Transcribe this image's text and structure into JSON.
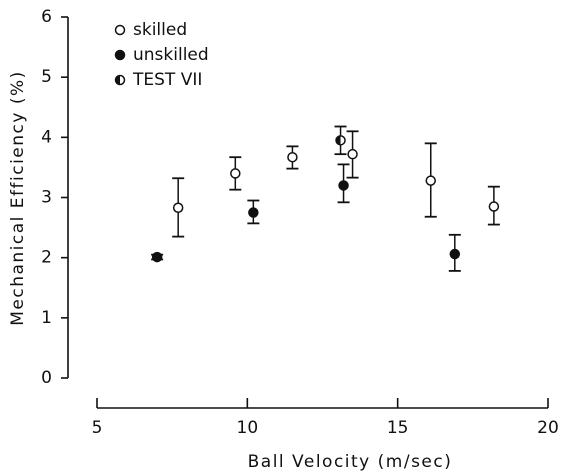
{
  "chart_data": {
    "type": "errorbar-scatter",
    "xlabel": "Ball Velocity (m/sec)",
    "ylabel": "Mechanical Efficiency (%)",
    "xlim": [
      5,
      20
    ],
    "xticks": [
      5,
      10,
      15,
      20
    ],
    "ylim": [
      0,
      6
    ],
    "yticks": [
      0,
      1,
      2,
      3,
      4,
      5,
      6
    ],
    "grid": false,
    "legend": "upper left",
    "series": [
      {
        "name": "skilled",
        "marker": "open",
        "color": "#111111",
        "x": [
          7.7,
          9.6,
          11.5,
          13.5,
          16.1,
          18.2
        ],
        "values": [
          2.83,
          3.4,
          3.67,
          3.72,
          3.28,
          2.85
        ],
        "low": [
          2.35,
          3.13,
          3.48,
          3.33,
          2.68,
          2.55
        ],
        "high": [
          3.32,
          3.67,
          3.85,
          4.1,
          3.9,
          3.18
        ]
      },
      {
        "name": "unskilled",
        "marker": "filled",
        "color": "#111111",
        "x": [
          7.0,
          10.2,
          13.2,
          16.9
        ],
        "values": [
          2.01,
          2.75,
          3.2,
          2.06
        ],
        "low": [
          1.97,
          2.57,
          2.92,
          1.78
        ],
        "high": [
          2.05,
          2.95,
          3.55,
          2.38
        ]
      },
      {
        "name": "TEST VII",
        "marker": "half",
        "color": "#111111",
        "x": [
          13.1
        ],
        "values": [
          3.95
        ],
        "low": [
          3.72
        ],
        "high": [
          4.18
        ]
      }
    ]
  }
}
